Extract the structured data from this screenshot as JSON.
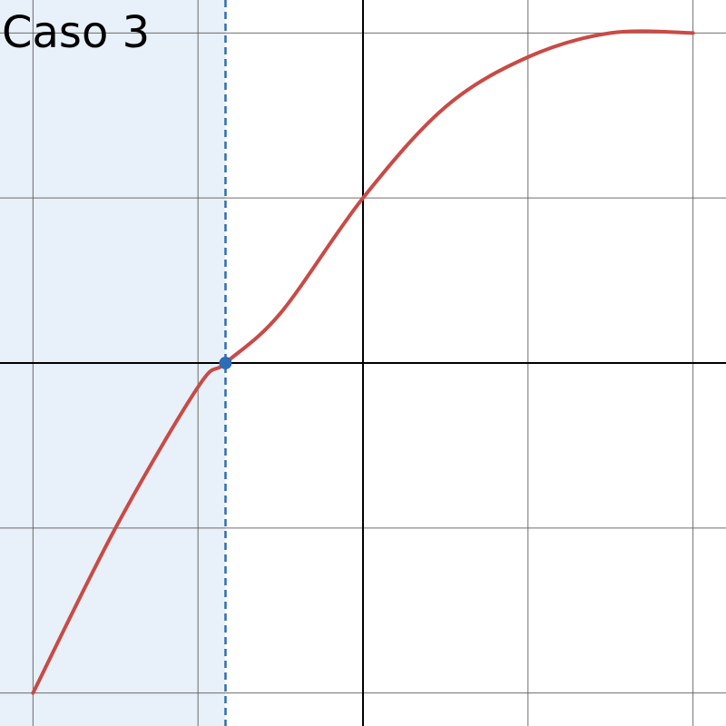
{
  "title": "Caso 3",
  "chart_data": {
    "type": "line",
    "title": "Caso 3",
    "xlim": [
      -2.2,
      2.2
    ],
    "ylim": [
      -2.2,
      2.2
    ],
    "grid": true,
    "grid_step": 1,
    "series": [
      {
        "color": "#c94a45",
        "x": [
          -2,
          -1.5,
          -1,
          -0.8333,
          -0.5,
          0,
          0.5,
          1,
          1.5,
          2
        ],
        "y": [
          -2,
          -1.0,
          -0.1458,
          0,
          0.3021,
          1.0,
          1.5521,
          1.8542,
          2.0,
          2.0
        ]
      }
    ],
    "points": [
      {
        "x": -0.8333,
        "y": 0,
        "color": "#2d6db5"
      }
    ],
    "shaded_region": {
      "x_from": -2.2,
      "x_to": -0.8333,
      "color": "#e8f0f9"
    },
    "vertical_line": {
      "x": -0.8333,
      "style": "dashed",
      "color": "#2d6db5"
    },
    "colors": {
      "grid": "#555555",
      "axis": "#000000",
      "curve": "#c94a45",
      "point": "#2d6db5"
    }
  }
}
